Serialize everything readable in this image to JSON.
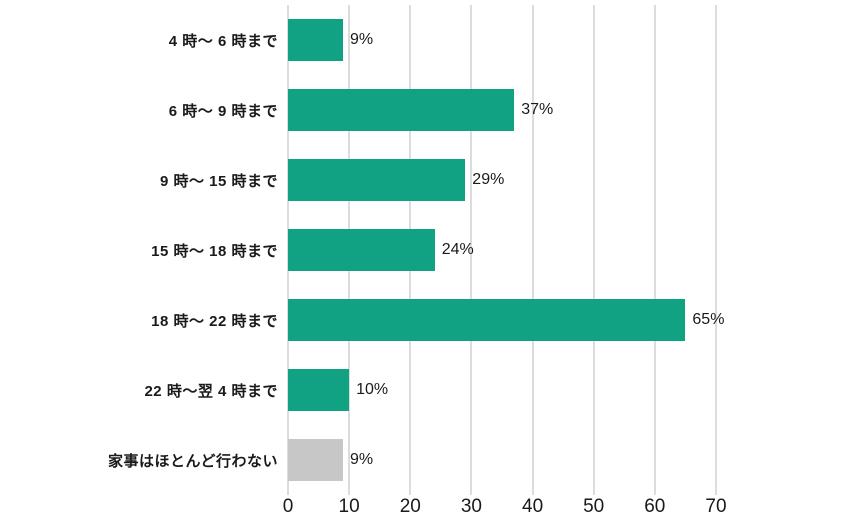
{
  "chart_data": {
    "type": "bar",
    "orientation": "horizontal",
    "title": "",
    "xlabel": "",
    "ylabel": "",
    "categories": [
      "4 時〜 6 時まで",
      "6 時〜 9 時まで",
      "9 時〜 15 時まで",
      "15 時〜 18 時まで",
      "18 時〜 22 時まで",
      "22 時〜翌 4 時まで",
      "家事はほとんど行わない"
    ],
    "values": [
      9,
      37,
      29,
      24,
      65,
      10,
      9
    ],
    "value_labels": [
      "9%",
      "37%",
      "29%",
      "24%",
      "65%",
      "10%",
      "9%"
    ],
    "muted": [
      false,
      false,
      false,
      false,
      false,
      false,
      true
    ],
    "xlim": [
      0,
      70
    ],
    "x_ticks": [
      0,
      10,
      20,
      30,
      40,
      50,
      60,
      70
    ],
    "grid": "vertical-only",
    "legend": "none",
    "colors": {
      "bar": "#10a283",
      "muted_bar": "#c7c7c7",
      "grid": "#dcdcdc",
      "text": "#1a1a1a"
    }
  }
}
